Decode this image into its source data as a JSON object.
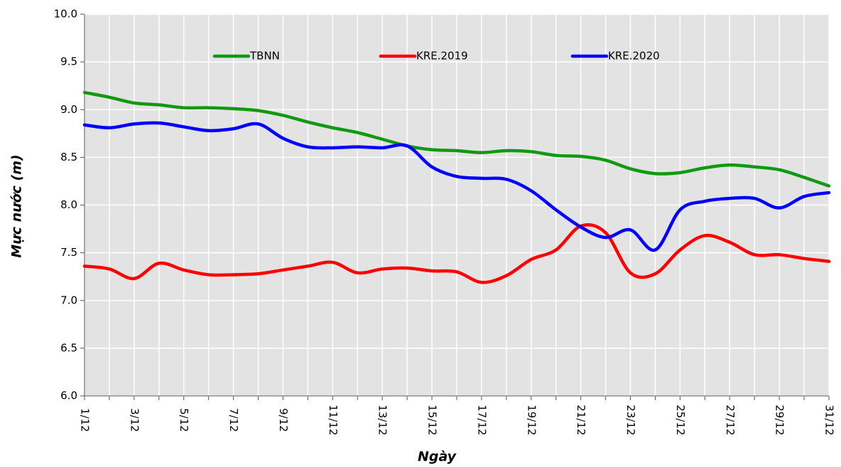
{
  "chart_data": {
    "type": "line",
    "x_label": "Ngày",
    "y_label": "Mực nước (m)",
    "categories": [
      "1/12",
      null,
      "3/12",
      null,
      "5/12",
      null,
      "7/12",
      null,
      "9/12",
      null,
      "11/12",
      null,
      "13/12",
      null,
      "15/12",
      null,
      "17/12",
      null,
      "19/12",
      null,
      "21/12",
      null,
      "23/12",
      null,
      "25/12",
      null,
      "27/12",
      null,
      "29/12",
      null,
      "31/12"
    ],
    "series": [
      {
        "name": "TBNN",
        "color": "#119911",
        "values": [
          9.18,
          9.13,
          9.07,
          9.05,
          9.02,
          9.02,
          9.01,
          8.99,
          8.94,
          8.87,
          8.81,
          8.76,
          8.69,
          8.62,
          8.58,
          8.57,
          8.55,
          8.57,
          8.56,
          8.52,
          8.51,
          8.47,
          8.38,
          8.33,
          8.34,
          8.39,
          8.42,
          8.4,
          8.37,
          8.29,
          8.2
        ]
      },
      {
        "name": "KRE.2019",
        "color": "#ff0000",
        "values": [
          7.36,
          7.33,
          7.23,
          7.39,
          7.32,
          7.27,
          7.27,
          7.28,
          7.32,
          7.36,
          7.4,
          7.29,
          7.33,
          7.34,
          7.31,
          7.3,
          7.19,
          7.26,
          7.43,
          7.53,
          7.78,
          7.71,
          7.29,
          7.28,
          7.53,
          7.68,
          7.61,
          7.48,
          7.48,
          7.44,
          7.41
        ]
      },
      {
        "name": "KRE.2020",
        "color": "#0000ff",
        "values": [
          8.84,
          8.81,
          8.85,
          8.86,
          8.82,
          8.78,
          8.8,
          8.85,
          8.7,
          8.61,
          8.6,
          8.61,
          8.6,
          8.62,
          8.4,
          8.3,
          8.28,
          8.27,
          8.15,
          7.95,
          7.77,
          7.66,
          7.74,
          7.53,
          7.95,
          8.04,
          8.07,
          8.07,
          7.97,
          8.09,
          8.13
        ]
      }
    ],
    "ylim": [
      6,
      10
    ],
    "yticks": [
      {
        "value": 6,
        "label": "6.0"
      },
      6.5,
      {
        "value": 7,
        "label": "7.0"
      },
      7.5,
      {
        "value": 8,
        "label": "8.0"
      },
      8.5,
      {
        "value": 9,
        "label": "9.0"
      },
      9.5,
      {
        "value": 10,
        "label": "10.0"
      }
    ],
    "grid": true,
    "legend": "top"
  }
}
